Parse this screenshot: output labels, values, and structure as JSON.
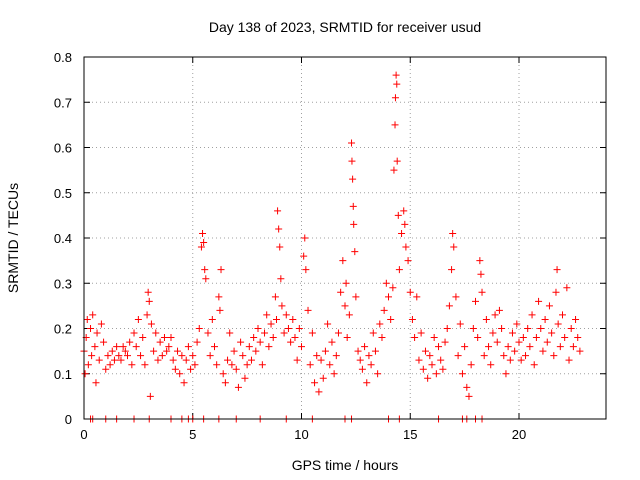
{
  "chart_data": {
    "type": "scatter",
    "title": "Day 138 of 2023, SRMTID for receiver usud",
    "xlabel": "GPS time / hours",
    "ylabel": "SRMTID / TECUs",
    "xlim": [
      0,
      24
    ],
    "ylim": [
      0,
      0.8
    ],
    "x_ticks": [
      {
        "value": 0,
        "label": "0"
      },
      {
        "value": 5,
        "label": "5"
      },
      {
        "value": 10,
        "label": "10"
      },
      {
        "value": 15,
        "label": "15"
      },
      {
        "value": 20,
        "label": "20"
      }
    ],
    "y_ticks": [
      {
        "value": 0,
        "label": "0"
      },
      {
        "value": 0.1,
        "label": "0.1"
      },
      {
        "value": 0.2,
        "label": "0.2"
      },
      {
        "value": 0.3,
        "label": "0.3"
      },
      {
        "value": 0.4,
        "label": "0.4"
      },
      {
        "value": 0.5,
        "label": "0.5"
      },
      {
        "value": 0.6,
        "label": "0.6"
      },
      {
        "value": 0.7,
        "label": "0.7"
      },
      {
        "value": 0.8,
        "label": "0.8"
      }
    ],
    "grid": true,
    "marker": "plus",
    "series": [
      {
        "name": "SRMTID",
        "color": "#ff0000",
        "points": [
          [
            0.0,
            0.15
          ],
          [
            0.05,
            0.1
          ],
          [
            0.1,
            0.18
          ],
          [
            0.15,
            0.22
          ],
          [
            0.2,
            0.12
          ],
          [
            0.3,
            0.2
          ],
          [
            0.35,
            0.14
          ],
          [
            0.4,
            0.23
          ],
          [
            0.5,
            0.16
          ],
          [
            0.55,
            0.08
          ],
          [
            0.6,
            0.19
          ],
          [
            0.7,
            0.13
          ],
          [
            0.8,
            0.21
          ],
          [
            0.9,
            0.17
          ],
          [
            1.0,
            0.11
          ],
          [
            1.1,
            0.14
          ],
          [
            1.2,
            0.12
          ],
          [
            1.3,
            0.15
          ],
          [
            1.4,
            0.13
          ],
          [
            1.5,
            0.16
          ],
          [
            1.6,
            0.14
          ],
          [
            1.7,
            0.13
          ],
          [
            1.8,
            0.16
          ],
          [
            1.9,
            0.15
          ],
          [
            2.0,
            0.14
          ],
          [
            2.1,
            0.17
          ],
          [
            2.2,
            0.12
          ],
          [
            2.3,
            0.19
          ],
          [
            2.4,
            0.16
          ],
          [
            2.5,
            0.22
          ],
          [
            2.6,
            0.14
          ],
          [
            2.7,
            0.18
          ],
          [
            2.8,
            0.12
          ],
          [
            2.9,
            0.23
          ],
          [
            2.95,
            0.28
          ],
          [
            3.0,
            0.26
          ],
          [
            3.05,
            0.05
          ],
          [
            3.1,
            0.21
          ],
          [
            3.2,
            0.15
          ],
          [
            3.3,
            0.19
          ],
          [
            3.4,
            0.13
          ],
          [
            3.5,
            0.17
          ],
          [
            3.6,
            0.14
          ],
          [
            3.7,
            0.18
          ],
          [
            3.8,
            0.15
          ],
          [
            3.9,
            0.16
          ],
          [
            4.0,
            0.18
          ],
          [
            4.1,
            0.13
          ],
          [
            4.2,
            0.11
          ],
          [
            4.3,
            0.15
          ],
          [
            4.4,
            0.1
          ],
          [
            4.5,
            0.14
          ],
          [
            4.6,
            0.08
          ],
          [
            4.7,
            0.13
          ],
          [
            4.8,
            0.16
          ],
          [
            4.9,
            0.11
          ],
          [
            5.0,
            0.14
          ],
          [
            5.1,
            0.12
          ],
          [
            5.2,
            0.17
          ],
          [
            5.3,
            0.2
          ],
          [
            5.4,
            0.38
          ],
          [
            5.45,
            0.41
          ],
          [
            5.5,
            0.39
          ],
          [
            5.55,
            0.33
          ],
          [
            5.6,
            0.31
          ],
          [
            5.7,
            0.19
          ],
          [
            5.8,
            0.14
          ],
          [
            5.9,
            0.22
          ],
          [
            6.0,
            0.16
          ],
          [
            6.1,
            0.12
          ],
          [
            6.2,
            0.27
          ],
          [
            6.25,
            0.24
          ],
          [
            6.3,
            0.33
          ],
          [
            6.4,
            0.1
          ],
          [
            6.5,
            0.08
          ],
          [
            6.6,
            0.13
          ],
          [
            6.7,
            0.19
          ],
          [
            6.8,
            0.12
          ],
          [
            6.9,
            0.15
          ],
          [
            7.0,
            0.11
          ],
          [
            7.1,
            0.07
          ],
          [
            7.2,
            0.17
          ],
          [
            7.3,
            0.14
          ],
          [
            7.4,
            0.09
          ],
          [
            7.5,
            0.12
          ],
          [
            7.6,
            0.16
          ],
          [
            7.7,
            0.13
          ],
          [
            7.8,
            0.18
          ],
          [
            7.9,
            0.15
          ],
          [
            8.0,
            0.2
          ],
          [
            8.1,
            0.17
          ],
          [
            8.2,
            0.12
          ],
          [
            8.3,
            0.19
          ],
          [
            8.4,
            0.23
          ],
          [
            8.5,
            0.16
          ],
          [
            8.6,
            0.21
          ],
          [
            8.7,
            0.18
          ],
          [
            8.8,
            0.27
          ],
          [
            8.85,
            0.22
          ],
          [
            8.9,
            0.46
          ],
          [
            8.95,
            0.42
          ],
          [
            9.0,
            0.38
          ],
          [
            9.05,
            0.31
          ],
          [
            9.1,
            0.25
          ],
          [
            9.2,
            0.19
          ],
          [
            9.3,
            0.23
          ],
          [
            9.4,
            0.2
          ],
          [
            9.5,
            0.17
          ],
          [
            9.6,
            0.22
          ],
          [
            9.7,
            0.18
          ],
          [
            9.8,
            0.13
          ],
          [
            9.9,
            0.2
          ],
          [
            10.0,
            0.16
          ],
          [
            10.1,
            0.36
          ],
          [
            10.15,
            0.4
          ],
          [
            10.2,
            0.33
          ],
          [
            10.3,
            0.24
          ],
          [
            10.4,
            0.12
          ],
          [
            10.5,
            0.19
          ],
          [
            10.6,
            0.08
          ],
          [
            10.7,
            0.14
          ],
          [
            10.8,
            0.06
          ],
          [
            10.9,
            0.13
          ],
          [
            11.0,
            0.09
          ],
          [
            11.1,
            0.15
          ],
          [
            11.2,
            0.21
          ],
          [
            11.3,
            0.12
          ],
          [
            11.4,
            0.17
          ],
          [
            11.5,
            0.1
          ],
          [
            11.6,
            0.14
          ],
          [
            11.7,
            0.19
          ],
          [
            11.8,
            0.28
          ],
          [
            11.9,
            0.35
          ],
          [
            12.0,
            0.25
          ],
          [
            12.05,
            0.3
          ],
          [
            12.1,
            0.18
          ],
          [
            12.2,
            0.23
          ],
          [
            12.3,
            0.61
          ],
          [
            12.32,
            0.57
          ],
          [
            12.35,
            0.53
          ],
          [
            12.38,
            0.47
          ],
          [
            12.4,
            0.43
          ],
          [
            12.45,
            0.37
          ],
          [
            12.5,
            0.27
          ],
          [
            12.6,
            0.15
          ],
          [
            12.7,
            0.13
          ],
          [
            12.8,
            0.11
          ],
          [
            12.9,
            0.16
          ],
          [
            13.0,
            0.08
          ],
          [
            13.1,
            0.14
          ],
          [
            13.2,
            0.12
          ],
          [
            13.3,
            0.19
          ],
          [
            13.4,
            0.15
          ],
          [
            13.5,
            0.1
          ],
          [
            13.6,
            0.21
          ],
          [
            13.7,
            0.18
          ],
          [
            13.8,
            0.24
          ],
          [
            13.9,
            0.3
          ],
          [
            14.0,
            0.27
          ],
          [
            14.1,
            0.22
          ],
          [
            14.2,
            0.29
          ],
          [
            14.25,
            0.55
          ],
          [
            14.3,
            0.65
          ],
          [
            14.32,
            0.71
          ],
          [
            14.35,
            0.76
          ],
          [
            14.38,
            0.74
          ],
          [
            14.4,
            0.57
          ],
          [
            14.45,
            0.45
          ],
          [
            14.5,
            0.33
          ],
          [
            14.6,
            0.41
          ],
          [
            14.7,
            0.46
          ],
          [
            14.75,
            0.43
          ],
          [
            14.8,
            0.38
          ],
          [
            14.9,
            0.35
          ],
          [
            15.0,
            0.28
          ],
          [
            15.1,
            0.22
          ],
          [
            15.2,
            0.18
          ],
          [
            15.3,
            0.27
          ],
          [
            15.4,
            0.13
          ],
          [
            15.5,
            0.19
          ],
          [
            15.6,
            0.11
          ],
          [
            15.7,
            0.15
          ],
          [
            15.8,
            0.09
          ],
          [
            15.9,
            0.14
          ],
          [
            16.0,
            0.12
          ],
          [
            16.1,
            0.18
          ],
          [
            16.2,
            0.1
          ],
          [
            16.3,
            0.16
          ],
          [
            16.4,
            0.13
          ],
          [
            16.5,
            0.11
          ],
          [
            16.6,
            0.17
          ],
          [
            16.7,
            0.2
          ],
          [
            16.8,
            0.25
          ],
          [
            16.9,
            0.33
          ],
          [
            16.95,
            0.41
          ],
          [
            17.0,
            0.38
          ],
          [
            17.1,
            0.27
          ],
          [
            17.2,
            0.14
          ],
          [
            17.3,
            0.21
          ],
          [
            17.4,
            0.1
          ],
          [
            17.5,
            0.16
          ],
          [
            17.6,
            0.07
          ],
          [
            17.7,
            0.05
          ],
          [
            17.8,
            0.12
          ],
          [
            17.9,
            0.2
          ],
          [
            18.0,
            0.26
          ],
          [
            18.1,
            0.18
          ],
          [
            18.2,
            0.35
          ],
          [
            18.25,
            0.32
          ],
          [
            18.3,
            0.28
          ],
          [
            18.4,
            0.14
          ],
          [
            18.5,
            0.22
          ],
          [
            18.6,
            0.16
          ],
          [
            18.7,
            0.12
          ],
          [
            18.8,
            0.19
          ],
          [
            18.9,
            0.23
          ],
          [
            19.0,
            0.17
          ],
          [
            19.1,
            0.24
          ],
          [
            19.2,
            0.2
          ],
          [
            19.3,
            0.14
          ],
          [
            19.4,
            0.1
          ],
          [
            19.5,
            0.16
          ],
          [
            19.6,
            0.13
          ],
          [
            19.7,
            0.19
          ],
          [
            19.8,
            0.15
          ],
          [
            19.9,
            0.21
          ],
          [
            20.0,
            0.17
          ],
          [
            20.1,
            0.13
          ],
          [
            20.2,
            0.18
          ],
          [
            20.3,
            0.14
          ],
          [
            20.4,
            0.2
          ],
          [
            20.5,
            0.16
          ],
          [
            20.6,
            0.23
          ],
          [
            20.7,
            0.12
          ],
          [
            20.8,
            0.18
          ],
          [
            20.9,
            0.26
          ],
          [
            21.0,
            0.2
          ],
          [
            21.1,
            0.15
          ],
          [
            21.2,
            0.22
          ],
          [
            21.3,
            0.17
          ],
          [
            21.4,
            0.25
          ],
          [
            21.5,
            0.19
          ],
          [
            21.6,
            0.14
          ],
          [
            21.7,
            0.28
          ],
          [
            21.75,
            0.33
          ],
          [
            21.8,
            0.21
          ],
          [
            21.9,
            0.16
          ],
          [
            22.0,
            0.23
          ],
          [
            22.1,
            0.18
          ],
          [
            22.2,
            0.29
          ],
          [
            22.3,
            0.13
          ],
          [
            22.4,
            0.2
          ],
          [
            22.5,
            0.16
          ],
          [
            22.6,
            0.22
          ],
          [
            22.7,
            0.18
          ],
          [
            22.8,
            0.15
          ]
        ],
        "zero_x": [
          0.3,
          0.4,
          1.0,
          1.5,
          2.3,
          3.0,
          4.0,
          4.5,
          4.8,
          5.0,
          5.5,
          6.2,
          7.0,
          8.1,
          9.3,
          10.5,
          12.0,
          12.3,
          14.0,
          14.5,
          16.3,
          17.4,
          17.6,
          18.0,
          18.3
        ]
      }
    ]
  }
}
